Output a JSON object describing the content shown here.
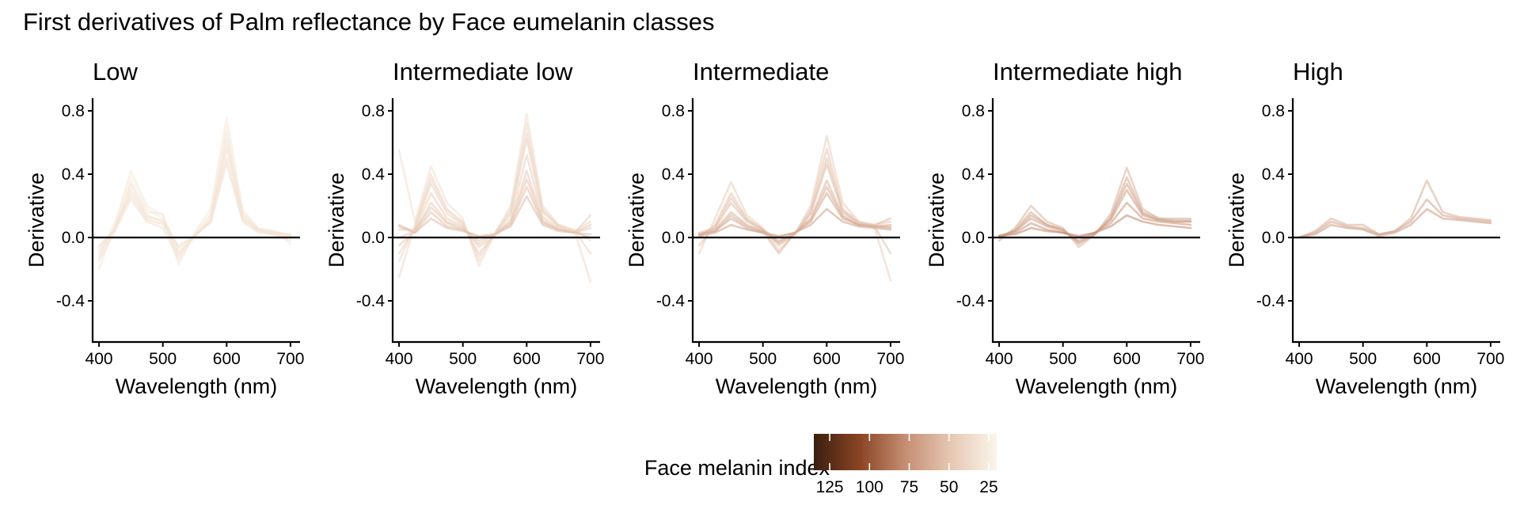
{
  "chart_data": {
    "type": "line",
    "title": "First derivatives of Palm reflectance by Face eumelanin classes",
    "xlabel": "Wavelength (nm)",
    "ylabel": "Derivative",
    "xlim": [
      390,
      715
    ],
    "ylim": [
      -0.66,
      0.88
    ],
    "xticks": [
      400,
      500,
      600,
      700
    ],
    "yticks": [
      -0.4,
      0.0,
      0.4,
      0.8
    ],
    "ytick_labels": [
      "-0.4",
      "0.0",
      "0.4",
      "0.8"
    ],
    "x": [
      400,
      425,
      450,
      475,
      500,
      525,
      550,
      575,
      600,
      625,
      650,
      675,
      700
    ],
    "reference_line_y": 0,
    "legend": {
      "title": "Face melanin index",
      "position": "bottom",
      "ticks": [
        125,
        100,
        75,
        50,
        25
      ],
      "range": [
        135,
        20
      ],
      "colors": [
        "#3a1f0f",
        "#8a4424",
        "#c58e73",
        "#e6c8b3",
        "#fbf5ea"
      ]
    },
    "panels": [
      {
        "title": "Low",
        "series": [
          {
            "melanin": 28,
            "values": [
              -0.2,
              0.08,
              0.42,
              0.2,
              0.14,
              -0.17,
              0.03,
              0.18,
              0.76,
              0.18,
              0.05,
              0.04,
              -0.04
            ]
          },
          {
            "melanin": 26,
            "values": [
              -0.12,
              0.1,
              0.38,
              0.18,
              0.12,
              -0.12,
              0.02,
              0.15,
              0.7,
              0.16,
              0.05,
              0.03,
              0.0
            ]
          },
          {
            "melanin": 30,
            "values": [
              -0.08,
              0.06,
              0.33,
              0.14,
              0.1,
              -0.08,
              0.0,
              0.12,
              0.62,
              0.14,
              0.04,
              0.03,
              0.02
            ]
          },
          {
            "melanin": 27,
            "values": [
              -0.05,
              0.05,
              0.28,
              0.12,
              0.08,
              -0.05,
              0.01,
              0.1,
              0.55,
              0.12,
              0.04,
              0.02,
              0.01
            ]
          },
          {
            "melanin": 32,
            "values": [
              -0.15,
              0.04,
              0.24,
              0.1,
              0.06,
              -0.14,
              0.02,
              0.09,
              0.47,
              0.1,
              0.03,
              0.02,
              -0.02
            ]
          },
          {
            "melanin": 29,
            "values": [
              -0.1,
              0.06,
              0.35,
              0.16,
              0.15,
              -0.1,
              0.0,
              0.14,
              0.66,
              0.15,
              0.06,
              0.04,
              0.01
            ]
          },
          {
            "melanin": 33,
            "values": [
              -0.06,
              0.05,
              0.3,
              0.13,
              0.11,
              -0.06,
              0.01,
              0.11,
              0.58,
              0.13,
              0.05,
              0.03,
              0.02
            ]
          },
          {
            "melanin": 31,
            "values": [
              -0.13,
              0.07,
              0.26,
              0.11,
              0.09,
              -0.11,
              0.02,
              0.1,
              0.5,
              0.11,
              0.04,
              0.02,
              0.0
            ]
          }
        ]
      },
      {
        "title": "Intermediate low",
        "series": [
          {
            "melanin": 35,
            "values": [
              0.55,
              0.1,
              0.45,
              0.22,
              0.12,
              -0.18,
              0.02,
              0.2,
              0.78,
              0.2,
              0.08,
              0.05,
              -0.02
            ]
          },
          {
            "melanin": 38,
            "values": [
              -0.25,
              0.08,
              0.4,
              0.18,
              0.1,
              -0.15,
              0.03,
              0.18,
              0.72,
              0.18,
              0.08,
              0.04,
              -0.28
            ]
          },
          {
            "melanin": 42,
            "values": [
              -0.1,
              0.06,
              0.34,
              0.15,
              0.08,
              -0.1,
              0.02,
              0.15,
              0.62,
              0.16,
              0.07,
              0.04,
              0.1
            ]
          },
          {
            "melanin": 45,
            "values": [
              0.05,
              0.05,
              0.28,
              0.12,
              0.07,
              -0.06,
              0.01,
              0.12,
              0.52,
              0.13,
              0.06,
              0.03,
              0.14
            ]
          },
          {
            "melanin": 48,
            "values": [
              -0.05,
              0.04,
              0.22,
              0.1,
              0.06,
              -0.04,
              0.02,
              0.1,
              0.42,
              0.11,
              0.05,
              0.03,
              0.06
            ]
          },
          {
            "melanin": 52,
            "values": [
              0.08,
              0.03,
              0.16,
              0.07,
              0.05,
              0.0,
              0.02,
              0.08,
              0.32,
              0.09,
              0.05,
              0.03,
              0.02
            ]
          },
          {
            "melanin": 55,
            "values": [
              0.07,
              0.03,
              0.12,
              0.06,
              0.04,
              0.01,
              0.02,
              0.07,
              0.26,
              0.08,
              0.04,
              0.03,
              0.0
            ]
          },
          {
            "melanin": 40,
            "values": [
              -0.15,
              0.07,
              0.37,
              0.17,
              0.09,
              -0.12,
              0.02,
              0.16,
              0.66,
              0.17,
              0.07,
              0.04,
              -0.1
            ]
          },
          {
            "melanin": 50,
            "values": [
              0.0,
              0.04,
              0.19,
              0.09,
              0.05,
              -0.02,
              0.02,
              0.09,
              0.37,
              0.1,
              0.05,
              0.03,
              0.08
            ]
          }
        ]
      },
      {
        "title": "Intermediate",
        "series": [
          {
            "melanin": 45,
            "values": [
              -0.1,
              0.12,
              0.35,
              0.14,
              0.06,
              -0.08,
              0.02,
              0.2,
              0.64,
              0.22,
              0.1,
              0.06,
              -0.27
            ]
          },
          {
            "melanin": 50,
            "values": [
              0.0,
              0.08,
              0.28,
              0.12,
              0.05,
              -0.05,
              0.02,
              0.18,
              0.56,
              0.18,
              0.1,
              0.08,
              0.1
            ]
          },
          {
            "melanin": 55,
            "values": [
              0.03,
              0.06,
              0.22,
              0.1,
              0.05,
              -0.02,
              0.02,
              0.15,
              0.46,
              0.16,
              0.09,
              0.08,
              0.12
            ]
          },
          {
            "melanin": 60,
            "values": [
              0.02,
              0.05,
              0.16,
              0.08,
              0.04,
              -0.1,
              0.03,
              0.12,
              0.36,
              0.14,
              0.08,
              0.07,
              0.08
            ]
          },
          {
            "melanin": 65,
            "values": [
              0.02,
              0.04,
              0.12,
              0.06,
              0.03,
              0.0,
              0.03,
              0.1,
              0.28,
              0.12,
              0.08,
              0.07,
              0.06
            ]
          },
          {
            "melanin": 70,
            "values": [
              0.01,
              0.03,
              0.08,
              0.05,
              0.03,
              0.01,
              0.03,
              0.08,
              0.18,
              0.1,
              0.07,
              0.06,
              0.05
            ]
          },
          {
            "melanin": 52,
            "values": [
              -0.05,
              0.07,
              0.25,
              0.11,
              0.05,
              -0.04,
              0.02,
              0.16,
              0.5,
              0.17,
              0.09,
              0.07,
              -0.1
            ]
          },
          {
            "melanin": 62,
            "values": [
              0.02,
              0.04,
              0.14,
              0.07,
              0.04,
              -0.03,
              0.03,
              0.11,
              0.32,
              0.13,
              0.08,
              0.07,
              0.07
            ]
          }
        ]
      },
      {
        "title": "Intermediate high",
        "series": [
          {
            "melanin": 60,
            "values": [
              -0.02,
              0.06,
              0.2,
              0.1,
              0.06,
              -0.06,
              0.02,
              0.15,
              0.44,
              0.18,
              0.12,
              0.12,
              0.12
            ]
          },
          {
            "melanin": 65,
            "values": [
              0.0,
              0.05,
              0.16,
              0.08,
              0.05,
              -0.04,
              0.02,
              0.13,
              0.38,
              0.16,
              0.12,
              0.11,
              0.11
            ]
          },
          {
            "melanin": 70,
            "values": [
              0.01,
              0.04,
              0.12,
              0.07,
              0.04,
              -0.02,
              0.03,
              0.11,
              0.3,
              0.14,
              0.11,
              0.1,
              0.1
            ]
          },
          {
            "melanin": 75,
            "values": [
              0.01,
              0.03,
              0.09,
              0.05,
              0.03,
              0.0,
              0.03,
              0.09,
              0.22,
              0.12,
              0.1,
              0.09,
              0.08
            ]
          },
          {
            "melanin": 80,
            "values": [
              0.01,
              0.02,
              0.06,
              0.04,
              0.03,
              0.01,
              0.03,
              0.07,
              0.14,
              0.1,
              0.08,
              0.07,
              0.06
            ]
          },
          {
            "melanin": 68,
            "values": [
              0.0,
              0.04,
              0.14,
              0.08,
              0.05,
              -0.03,
              0.02,
              0.12,
              0.34,
              0.15,
              0.11,
              0.1,
              0.1
            ]
          }
        ]
      },
      {
        "title": "High",
        "series": [
          {
            "melanin": 62,
            "values": [
              0.0,
              0.04,
              0.12,
              0.08,
              0.08,
              0.02,
              0.04,
              0.12,
              0.36,
              0.16,
              0.13,
              0.12,
              0.11
            ]
          },
          {
            "melanin": 68,
            "values": [
              0.0,
              0.03,
              0.1,
              0.07,
              0.06,
              0.02,
              0.04,
              0.1,
              0.24,
              0.14,
              0.12,
              0.11,
              0.1
            ]
          },
          {
            "melanin": 72,
            "values": [
              0.0,
              0.02,
              0.08,
              0.06,
              0.05,
              0.01,
              0.03,
              0.08,
              0.18,
              0.12,
              0.11,
              0.1,
              0.09
            ]
          }
        ]
      }
    ]
  }
}
